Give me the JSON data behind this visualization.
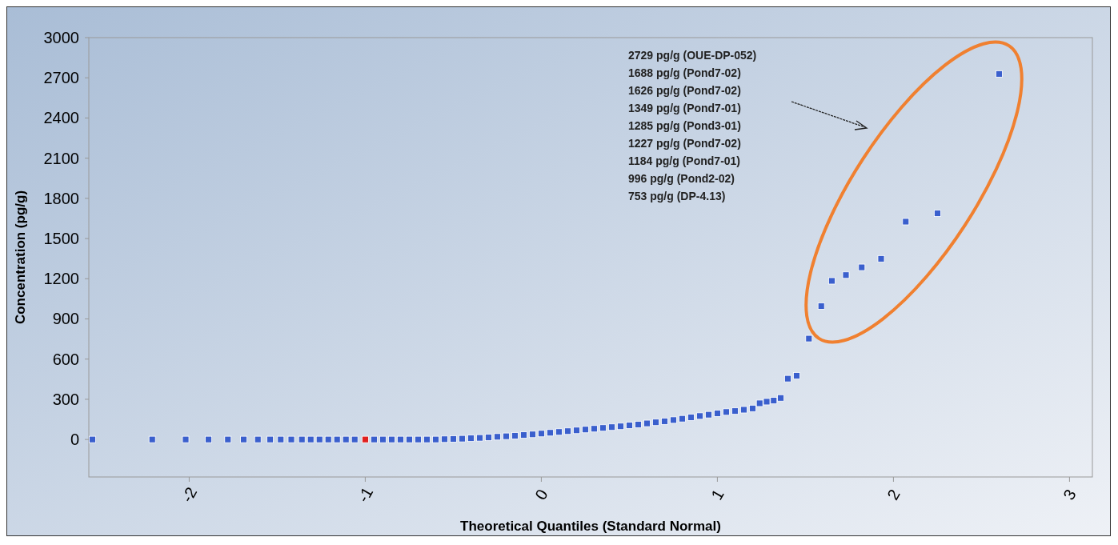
{
  "chart_data": {
    "type": "scatter",
    "xlabel": "Theoretical Quantiles (Standard Normal)",
    "ylabel": "Concentration (pg/g)",
    "xlim": [
      -2.57,
      3.13
    ],
    "xticks": [
      -2,
      -1,
      0,
      1,
      2,
      3
    ],
    "ylim": [
      -280,
      3000
    ],
    "yticks": [
      0,
      300,
      600,
      900,
      1200,
      1500,
      1800,
      2100,
      2400,
      2700,
      3000
    ],
    "grid": false,
    "marker": "square",
    "annotations": [
      "2729 pg/g (OUE-DP-052)",
      "1688 pg/g (Pond7-02)",
      "1626 pg/g (Pond7-02)",
      "1349 pg/g (Pond7-01)",
      "1285 pg/g (Pond3-01)",
      "1227 pg/g (Pond7-02)",
      "1184 pg/g (Pond7-01)",
      "996 pg/g (Pond2-02)",
      "753 pg/g (DP-4.13)"
    ],
    "series": [
      {
        "color": "#3a5fcd",
        "x": [
          -2.55,
          -2.21,
          -2.02,
          -1.89,
          -1.78,
          -1.69,
          -1.61,
          -1.54,
          -1.48,
          -1.42,
          -1.36,
          -1.31,
          -1.26,
          -1.21,
          -1.16,
          -1.11,
          -1.06,
          -0.95,
          -0.9,
          -0.85,
          -0.8,
          -0.75,
          -0.7,
          -0.65,
          -0.6,
          -0.55,
          -0.5,
          -0.45,
          -0.4,
          -0.35,
          -0.3,
          -0.25,
          -0.2,
          -0.15,
          -0.1,
          -0.05,
          0,
          0.05,
          0.1,
          0.15,
          0.2,
          0.25,
          0.3,
          0.35,
          0.4,
          0.45,
          0.5,
          0.55,
          0.6,
          0.65,
          0.7,
          0.75,
          0.8,
          0.85,
          0.9,
          0.95,
          1.0,
          1.05,
          1.1,
          1.15,
          1.2,
          1.24,
          1.28,
          1.32,
          1.36,
          1.4,
          1.45,
          1.52,
          1.59,
          1.65,
          1.73,
          1.82,
          1.93,
          2.07,
          2.25,
          2.6
        ],
        "values": [
          0,
          0,
          0,
          0,
          0,
          0,
          0,
          0,
          0,
          0,
          0,
          0,
          0,
          0,
          0,
          0,
          0,
          0,
          0,
          0,
          0,
          0,
          0,
          0,
          0,
          2,
          4,
          6,
          9,
          12,
          15,
          20,
          24,
          28,
          33,
          38,
          44,
          50,
          56,
          62,
          68,
          74,
          80,
          86,
          92,
          98,
          105,
          112,
          120,
          128,
          136,
          145,
          155,
          165,
          175,
          185,
          195,
          205,
          212,
          222,
          232,
          270,
          282,
          290,
          310,
          454,
          476,
          753,
          996,
          1184,
          1227,
          1285,
          1349,
          1626,
          1688,
          2729
        ]
      },
      {
        "color": "#e02020",
        "x": [
          -1.0
        ],
        "values": [
          0
        ]
      }
    ]
  }
}
